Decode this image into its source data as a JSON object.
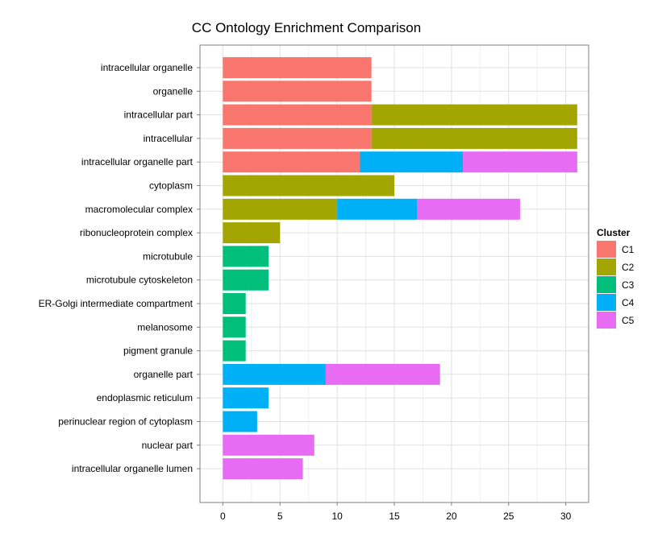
{
  "chart_data": {
    "type": "bar",
    "orientation": "horizontal",
    "stacked": true,
    "title": "CC Ontology Enrichment Comparison",
    "xlabel": "",
    "ylabel": "",
    "xlim": [
      -2,
      32
    ],
    "x_ticks": [
      0,
      5,
      10,
      15,
      20,
      25,
      30
    ],
    "grid": true,
    "legend_position": "right",
    "legend_title": "Cluster",
    "categories": [
      "intracellular organelle",
      "organelle",
      "intracellular part",
      "intracellular",
      "intracellular organelle part",
      "cytoplasm",
      "macromolecular complex",
      "ribonucleoprotein complex",
      "microtubule",
      "microtubule cytoskeleton",
      "ER-Golgi intermediate compartment",
      "melanosome",
      "pigment granule",
      "organelle part",
      "endoplasmic reticulum",
      "perinuclear region of cytoplasm",
      "nuclear part",
      "intracellular organelle lumen"
    ],
    "series": [
      {
        "name": "C1",
        "color": "#F8766D",
        "values": [
          13,
          13,
          13,
          13,
          12,
          0,
          0,
          0,
          0,
          0,
          0,
          0,
          0,
          0,
          0,
          0,
          0,
          0
        ]
      },
      {
        "name": "C2",
        "color": "#A3A500",
        "values": [
          0,
          0,
          18,
          18,
          0,
          15,
          10,
          5,
          0,
          0,
          0,
          0,
          0,
          0,
          0,
          0,
          0,
          0
        ]
      },
      {
        "name": "C3",
        "color": "#00BF7D",
        "values": [
          0,
          0,
          0,
          0,
          0,
          0,
          0,
          0,
          4,
          4,
          2,
          2,
          2,
          0,
          0,
          0,
          0,
          0
        ]
      },
      {
        "name": "C4",
        "color": "#00B0F6",
        "values": [
          0,
          0,
          0,
          0,
          9,
          0,
          7,
          0,
          0,
          0,
          0,
          0,
          0,
          9,
          4,
          3,
          0,
          0
        ]
      },
      {
        "name": "C5",
        "color": "#E76BF3",
        "values": [
          0,
          0,
          0,
          0,
          10,
          0,
          9,
          0,
          0,
          0,
          0,
          0,
          0,
          10,
          0,
          0,
          8,
          7
        ]
      }
    ]
  }
}
